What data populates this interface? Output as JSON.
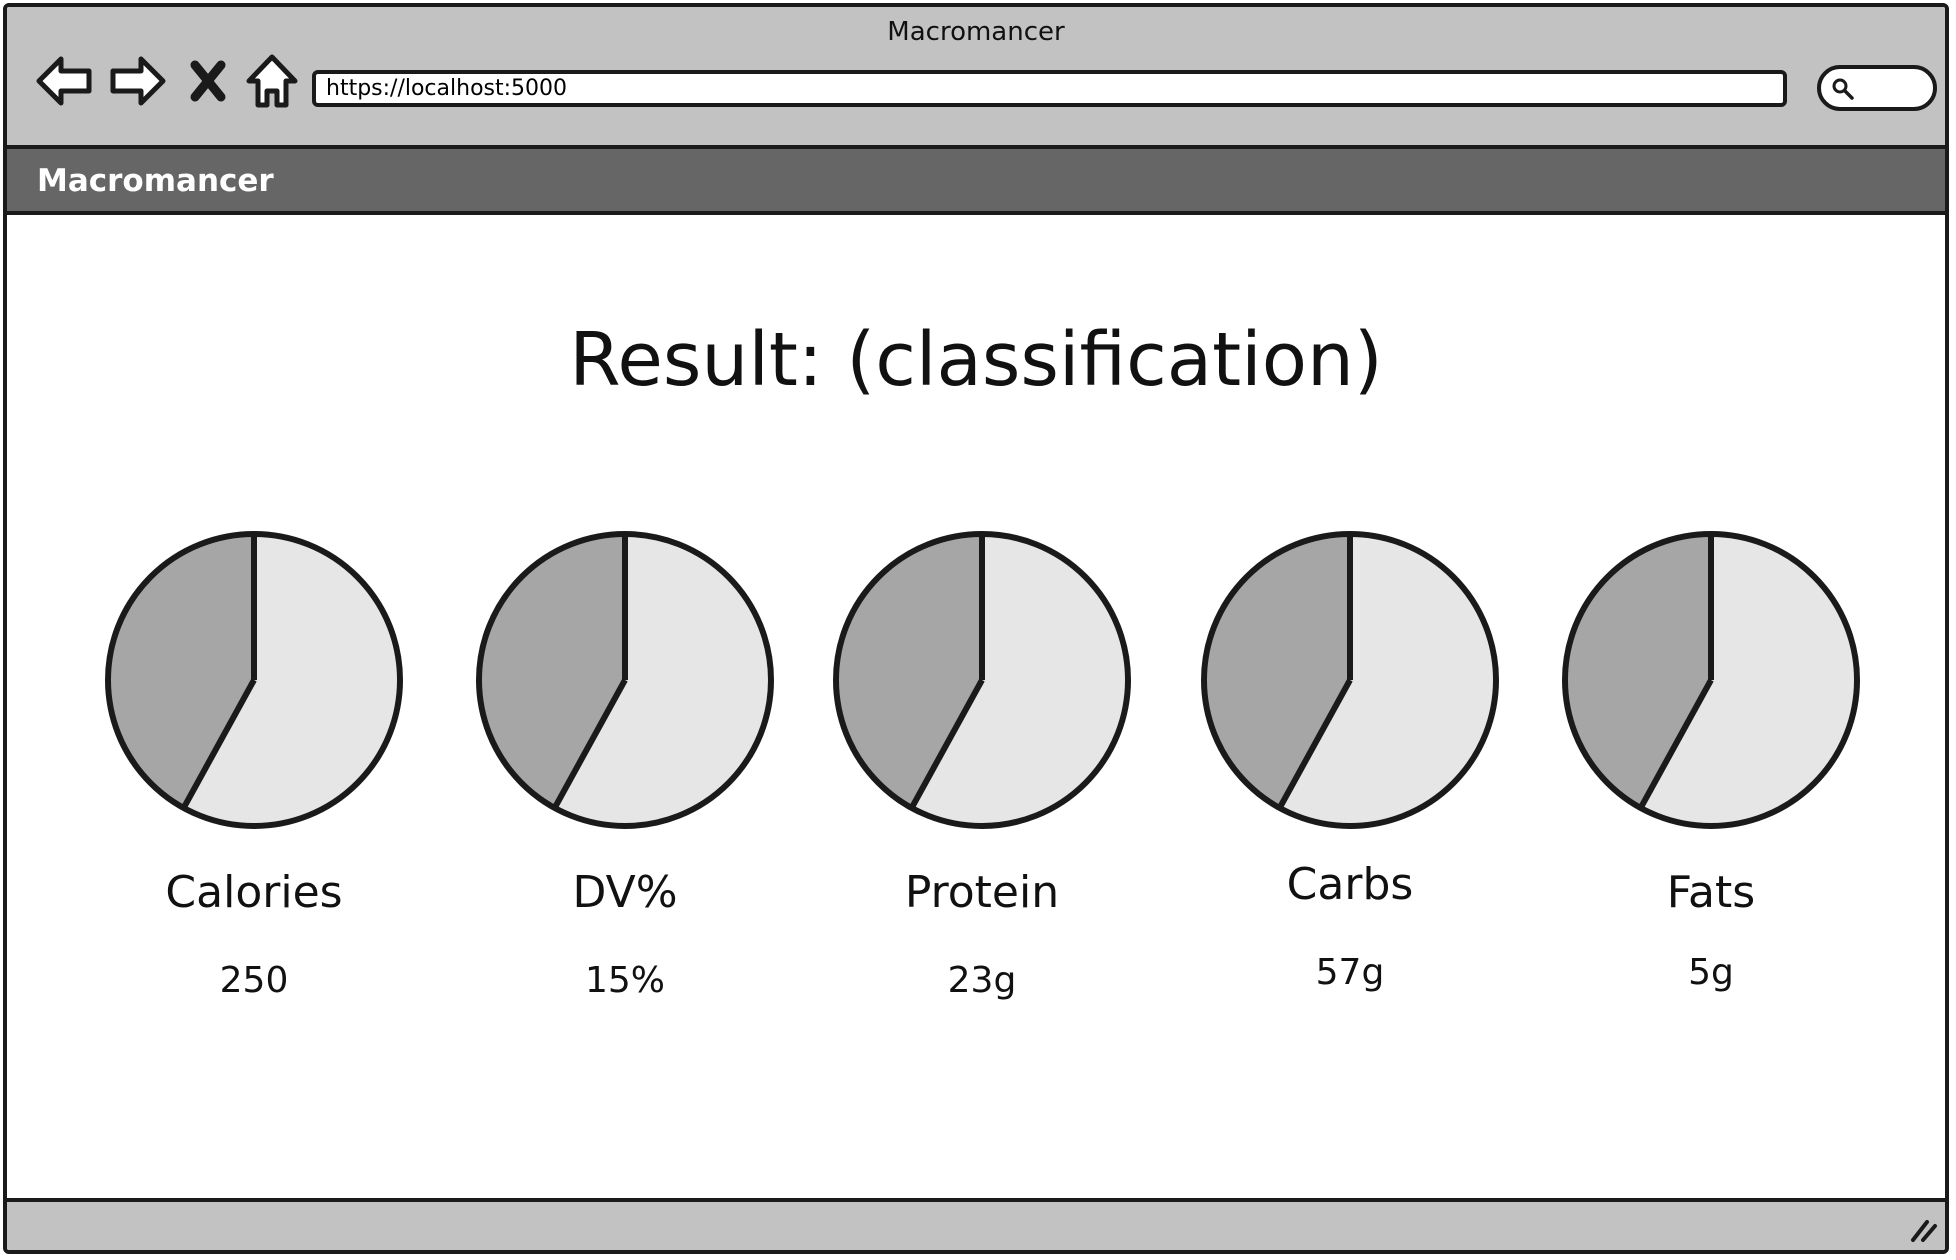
{
  "window": {
    "title": "Macromancer"
  },
  "browser": {
    "url": "https://localhost:5000",
    "nav_icons": [
      "back-arrow-icon",
      "forward-arrow-icon",
      "close-icon",
      "home-icon"
    ],
    "search_icon": "search-icon"
  },
  "app": {
    "name": "Macromancer"
  },
  "main": {
    "title": "Result: (classification)"
  },
  "metrics": [
    {
      "label": "Calories",
      "value": "250"
    },
    {
      "label": "DV%",
      "value": "15%"
    },
    {
      "label": "Protein",
      "value": "23g"
    },
    {
      "label": "Carbs",
      "value": "57g"
    },
    {
      "label": "Fats",
      "value": "5g"
    }
  ],
  "chart_data": [
    {
      "type": "pie",
      "slices": [
        42,
        58
      ],
      "colors": [
        "#a6a6a6",
        "#e6e6e6"
      ]
    },
    {
      "type": "pie",
      "slices": [
        42,
        58
      ],
      "colors": [
        "#a6a6a6",
        "#e6e6e6"
      ]
    },
    {
      "type": "pie",
      "slices": [
        42,
        58
      ],
      "colors": [
        "#a6a6a6",
        "#e6e6e6"
      ]
    },
    {
      "type": "pie",
      "slices": [
        42,
        58
      ],
      "colors": [
        "#a6a6a6",
        "#e6e6e6"
      ]
    },
    {
      "type": "pie",
      "slices": [
        42,
        58
      ],
      "colors": [
        "#a6a6a6",
        "#e6e6e6"
      ]
    }
  ]
}
